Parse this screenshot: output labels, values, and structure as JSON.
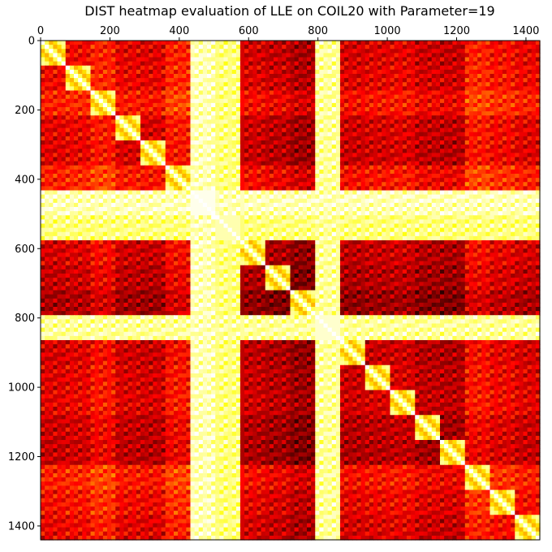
{
  "chart_data": {
    "type": "heatmap",
    "title": "DIST heatmap evaluation of LLE on COIL20 with Parameter=19",
    "xlabel": "",
    "ylabel": "",
    "n": 1440,
    "xlim": [
      0,
      1440
    ],
    "ylim": [
      1440,
      0
    ],
    "x_ticks": [
      0,
      200,
      400,
      600,
      800,
      1000,
      1200,
      1400
    ],
    "y_ticks": [
      0,
      200,
      400,
      600,
      800,
      1000,
      1200,
      1400
    ],
    "x_ticks_position": "top",
    "colormap": "hot",
    "grid": false,
    "clusters": [
      {
        "start": 0,
        "end": 72,
        "level": 0.42
      },
      {
        "start": 72,
        "end": 144,
        "level": 0.45
      },
      {
        "start": 144,
        "end": 216,
        "level": 0.55
      },
      {
        "start": 216,
        "end": 288,
        "level": 0.4
      },
      {
        "start": 288,
        "end": 360,
        "level": 0.38
      },
      {
        "start": 360,
        "end": 432,
        "level": 0.55
      },
      {
        "start": 432,
        "end": 504,
        "level": 0.98
      },
      {
        "start": 504,
        "end": 576,
        "level": 0.92
      },
      {
        "start": 576,
        "end": 648,
        "level": 0.35
      },
      {
        "start": 648,
        "end": 720,
        "level": 0.3
      },
      {
        "start": 720,
        "end": 792,
        "level": 0.22
      },
      {
        "start": 792,
        "end": 864,
        "level": 0.95
      },
      {
        "start": 864,
        "end": 936,
        "level": 0.35
      },
      {
        "start": 936,
        "end": 1008,
        "level": 0.38
      },
      {
        "start": 1008,
        "end": 1080,
        "level": 0.4
      },
      {
        "start": 1080,
        "end": 1152,
        "level": 0.32
      },
      {
        "start": 1152,
        "end": 1224,
        "level": 0.3
      },
      {
        "start": 1224,
        "end": 1296,
        "level": 0.55
      },
      {
        "start": 1296,
        "end": 1368,
        "level": 0.48
      },
      {
        "start": 1368,
        "end": 1440,
        "level": 0.42
      }
    ]
  }
}
